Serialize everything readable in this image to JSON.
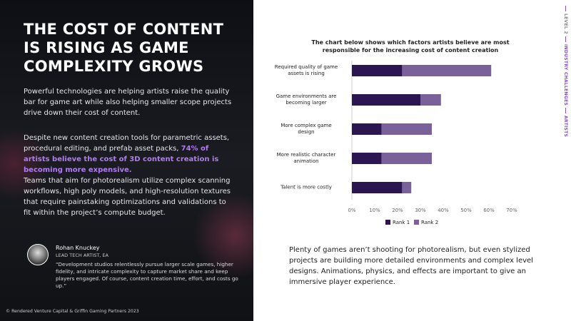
{
  "side_nav": {
    "level": "LEVEL 2",
    "section": "INDUSTRY CHALLENGES",
    "page": "ARTISTS"
  },
  "left": {
    "title": "THE COST OF CONTENT IS RISING AS GAME COMPLEXITY GROWS",
    "paragraph_1": "Powerful technologies are helping artists raise the quality bar for game art while also helping smaller scope projects drive down their cost of content.",
    "paragraph_2": "Despite new content creation tools for parametric assets, procedural editing, and prefab asset packs, ",
    "highlight": "74% of artists believe the cost of 3D content creation is becoming more expensive.",
    "paragraph_3": "Teams that aim for photorealism utilize complex scanning workflows, high poly models, and high-resolution textures that require painstaking optimizations and validations to fit within the project’s compute budget.",
    "quote": {
      "name": "Rohan Knuckey",
      "role": "LEAD TECH ARTIST, EA",
      "text": "“Development studios relentlessly pursue larger scale games, higher fidelity, and intricate complexity to capture market share and keep players engaged. Of course, content creation time, effort, and costs go up.”"
    },
    "footer": "© Rendered Venture Capital & Griffin Gaming Partners 2023"
  },
  "chart_data": {
    "type": "stacked_barh",
    "title": "The chart below shows which factors artists believe are most responsible for the increasing cost of content creation",
    "categories": [
      "Required quality of game assets is rising",
      "Game environments are becoming larger",
      "More complex game design",
      "More realistic character animation",
      "Talent is more costly"
    ],
    "series": [
      {
        "name": "Rank 1",
        "color": "#2b1652",
        "values": [
          22,
          30,
          13,
          13,
          22
        ]
      },
      {
        "name": "Rank 2",
        "color": "#7b6199",
        "values": [
          39,
          9,
          22,
          22,
          4
        ]
      }
    ],
    "xlim": [
      0,
      70
    ],
    "xticks": [
      {
        "value": 0,
        "label": "0%"
      },
      {
        "value": 10,
        "label": "10%"
      },
      {
        "value": 20,
        "label": "20%"
      },
      {
        "value": 30,
        "label": "30%"
      },
      {
        "value": 40,
        "label": "40%"
      },
      {
        "value": 50,
        "label": "50%"
      },
      {
        "value": 60,
        "label": "60%"
      },
      {
        "value": 70,
        "label": "70%"
      }
    ],
    "legend": "bottom"
  },
  "body_text": "Plenty of games aren’t shooting for photorealism, but even stylized projects are building more detailed environments and complex level designs. Animations, physics, and effects are important to give an immersive player experience."
}
